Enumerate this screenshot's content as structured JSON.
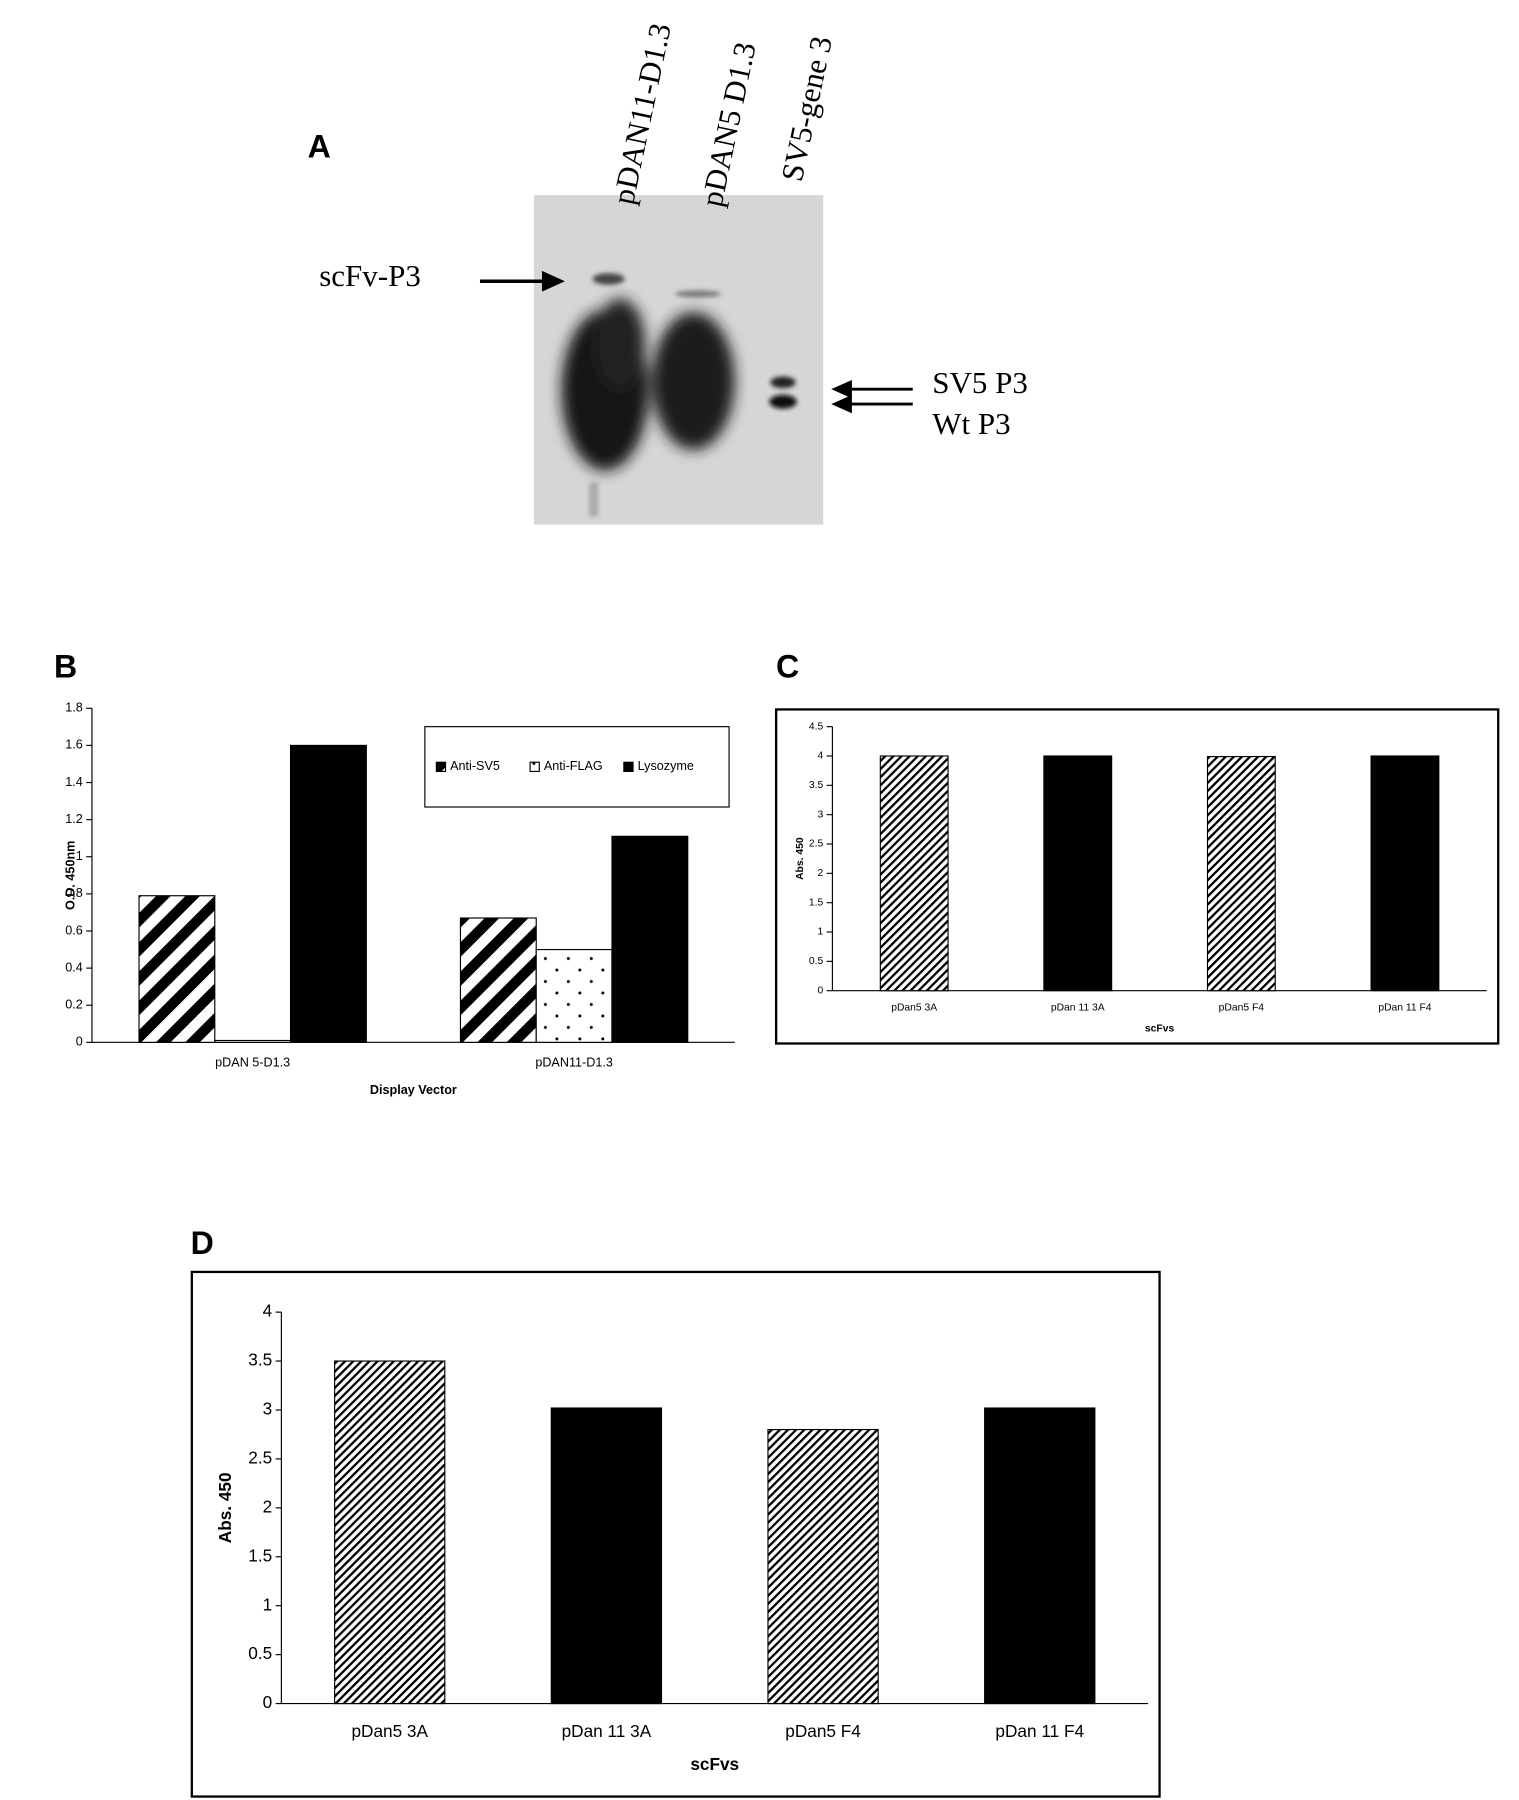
{
  "blot": {
    "label": "A",
    "lanes": [
      "pDAN11-D1.3",
      "pDAN5 D1.3",
      "SV5-gene 3"
    ],
    "markers": [
      "scFv-P3",
      "SV5 P3",
      "Wt P3"
    ]
  },
  "chart_data": [
    {
      "type": "bar",
      "label": "B",
      "categories": [
        "pDAN 5-D1.3",
        "pDAN11-D1.3"
      ],
      "series": [
        {
          "name": "Anti-SV5",
          "fill": "stripes",
          "values": [
            0.79,
            0.67
          ]
        },
        {
          "name": "Anti-FLAG",
          "fill": "dots",
          "values": [
            0.01,
            0.5
          ]
        },
        {
          "name": "Lysozyme",
          "fill": "black",
          "values": [
            1.6,
            1.11
          ]
        }
      ],
      "xlabel": "Display Vector",
      "ylabel": "O.D. 450nm",
      "ylim": [
        0,
        1.8
      ],
      "yticks": [
        0,
        0.2,
        0.4,
        0.6,
        0.8,
        1,
        1.2,
        1.4,
        1.6,
        1.8
      ],
      "legend": "upper right"
    },
    {
      "type": "bar",
      "label": "C",
      "categories": [
        "pDan5 3A",
        "pDan 11 3A",
        "pDan5 F4",
        "pDan 11 F4"
      ],
      "values": [
        4,
        4,
        3.99,
        4
      ],
      "fills": [
        "hatch",
        "black",
        "hatch",
        "black"
      ],
      "xlabel": "scFvs",
      "ylabel": "Abs. 450",
      "ylim": [
        0,
        4.5
      ],
      "yticks": [
        0,
        0.5,
        1,
        1.5,
        2,
        2.5,
        3,
        3.5,
        4,
        4.5
      ]
    },
    {
      "type": "bar",
      "label": "D",
      "categories": [
        "pDan5 3A",
        "pDan 11 3A",
        "pDan5 F4",
        "pDan 11 F4"
      ],
      "values": [
        3.5,
        3.02,
        2.8,
        3.02
      ],
      "fills": [
        "hatch",
        "black",
        "hatch",
        "black"
      ],
      "xlabel": "scFvs",
      "ylabel": "Abs. 450",
      "ylim": [
        0,
        4
      ],
      "yticks": [
        0,
        0.5,
        1,
        1.5,
        2,
        2.5,
        3,
        3.5,
        4
      ]
    }
  ]
}
